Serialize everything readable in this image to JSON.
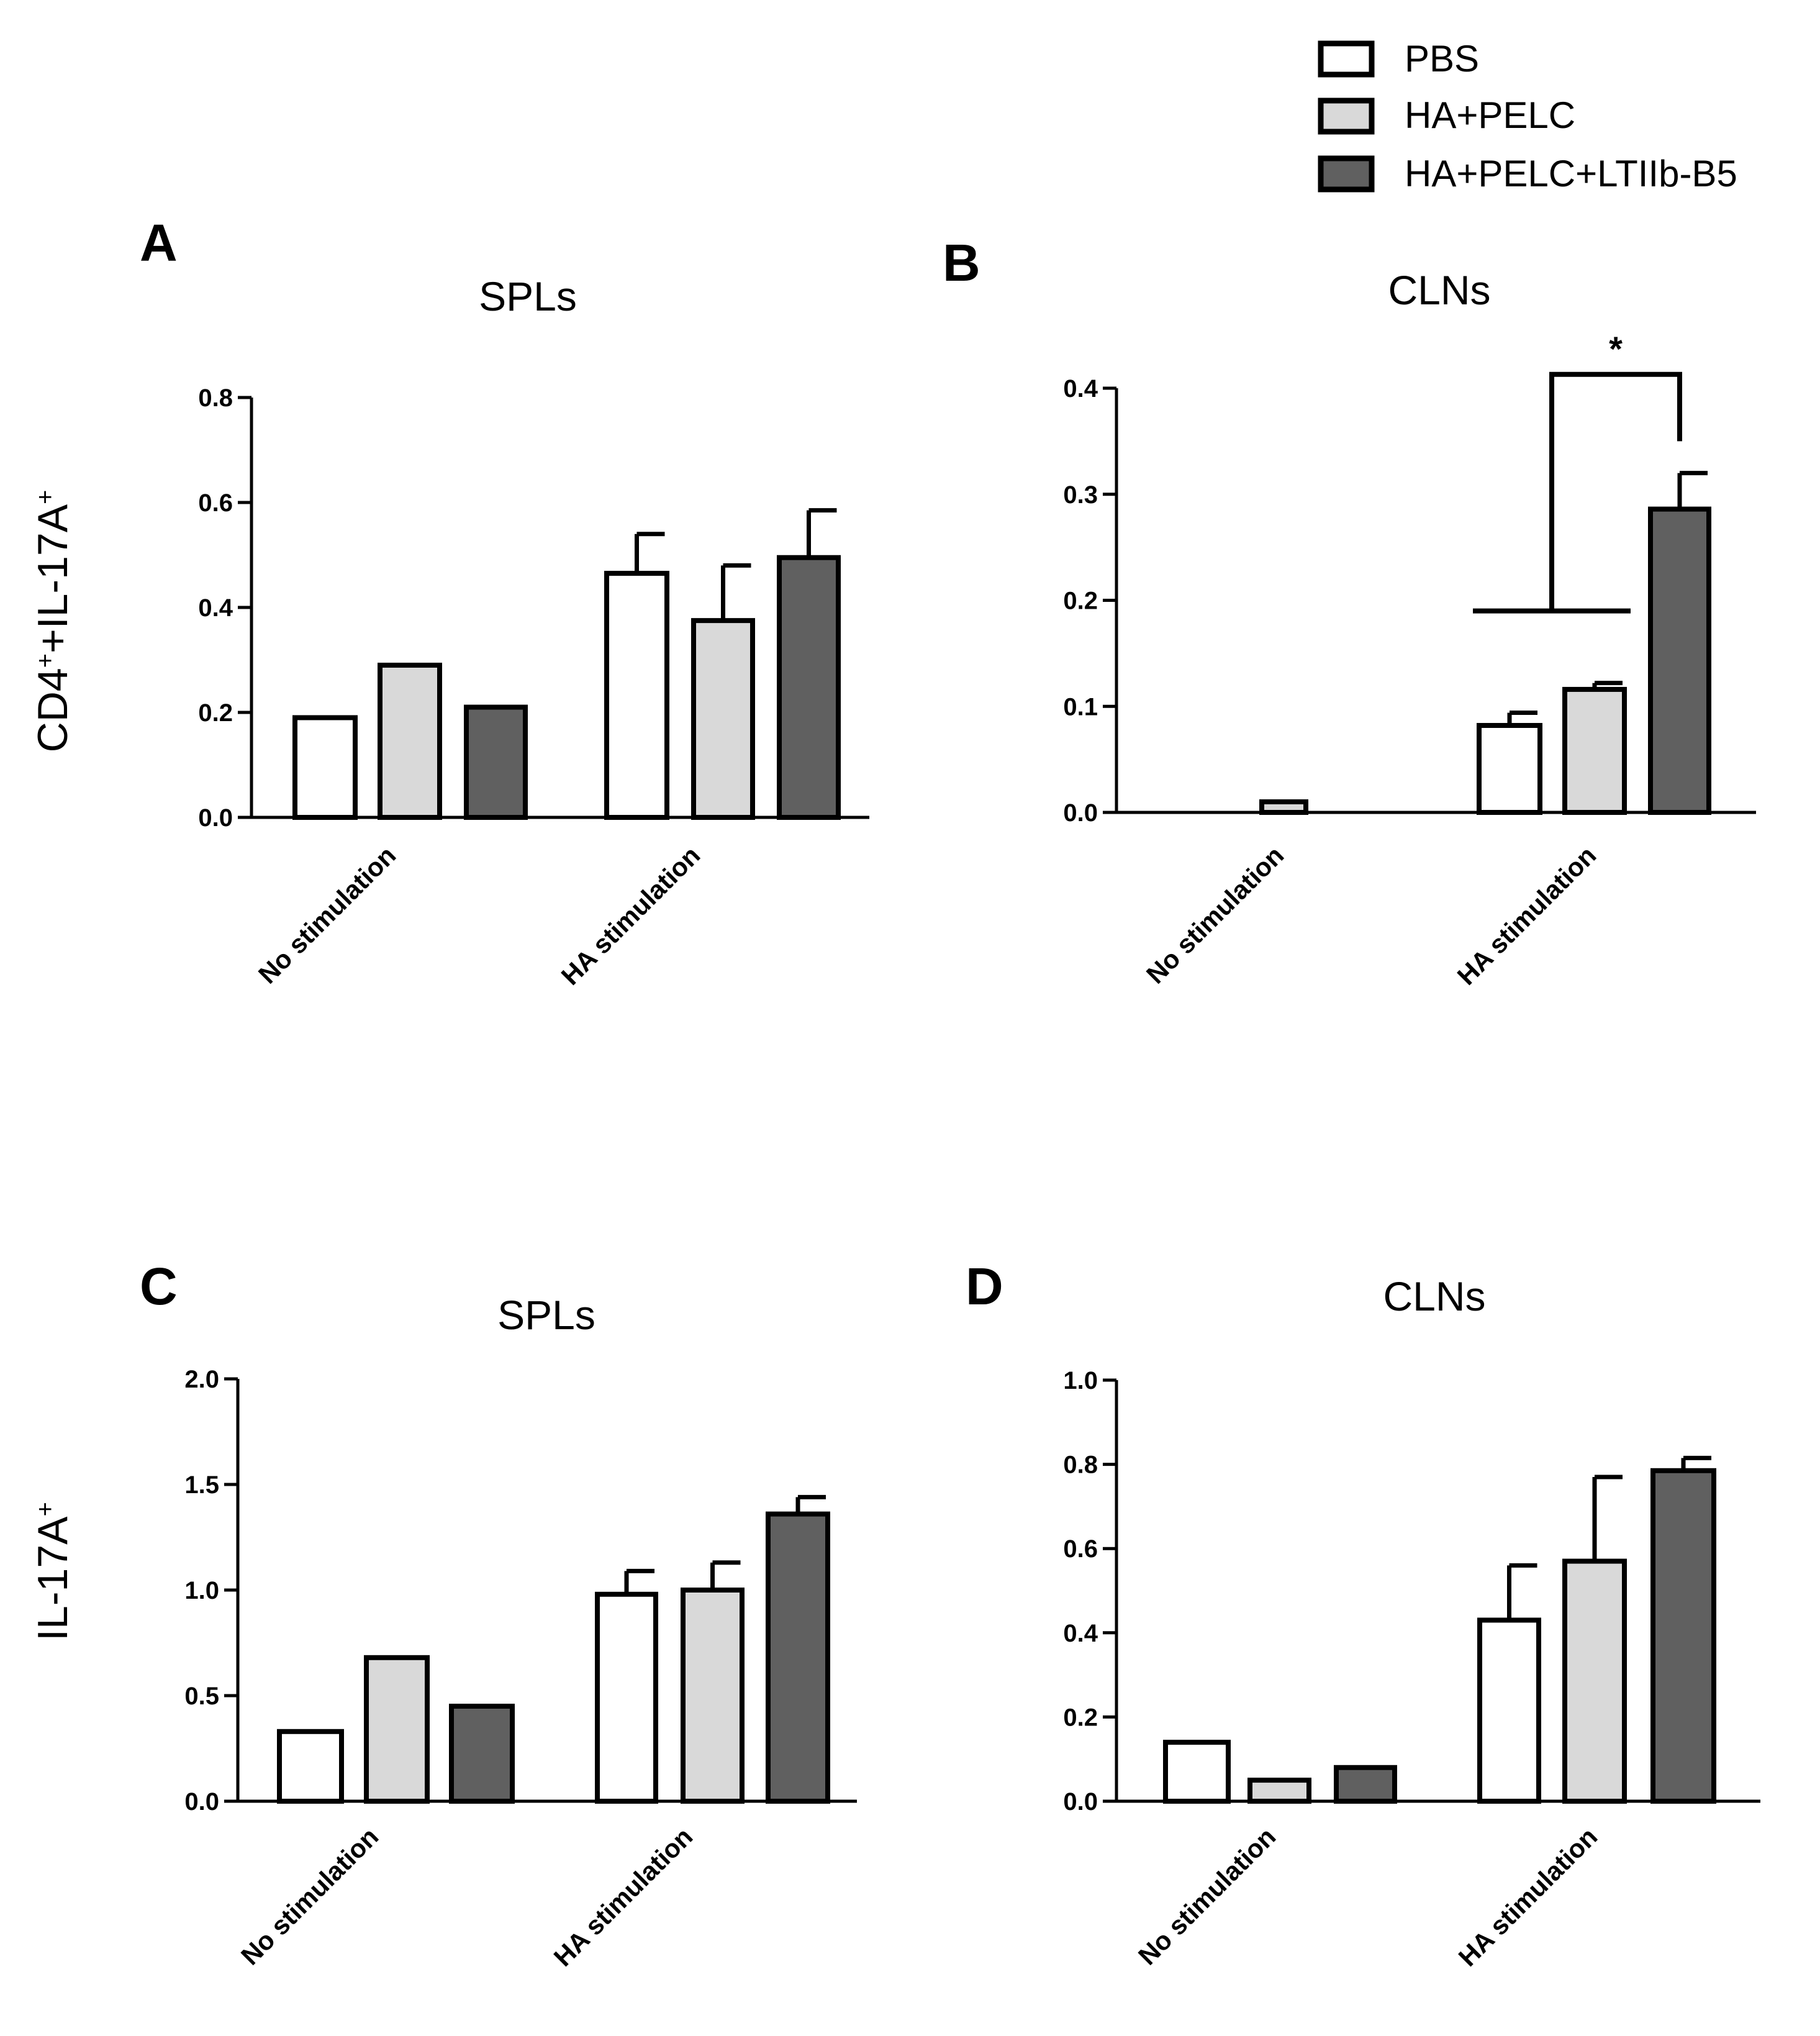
{
  "legend": {
    "entries": [
      {
        "label": "PBS",
        "color": "#ffffff"
      },
      {
        "label": "HA+PELC",
        "color": "#d9d9d9"
      },
      {
        "label": "HA+PELC+LTIIb-B5",
        "color": "#606060"
      }
    ]
  },
  "row_labels": {
    "top": {
      "base": "CD4",
      "sup1": "+",
      "mid": "+IL-17A",
      "sup2": "+"
    },
    "bottom": {
      "base": "IL-17A",
      "sup": "+"
    }
  },
  "chart_data": [
    {
      "type": "bar",
      "panel": "A",
      "title": "SPLs",
      "categories": [
        "No stimulation",
        "HA stimulation"
      ],
      "series": [
        {
          "name": "PBS",
          "values": [
            0.19,
            0.465
          ],
          "errors": [
            0,
            0.075
          ]
        },
        {
          "name": "HA+PELC",
          "values": [
            0.29,
            0.375
          ],
          "errors": [
            0,
            0.105
          ]
        },
        {
          "name": "HA+PELC+LTIIb-B5",
          "values": [
            0.21,
            0.495
          ],
          "errors": [
            0,
            0.09
          ]
        }
      ],
      "ylim": [
        0,
        0.8
      ],
      "yticks": [
        "0.0",
        "0.2",
        "0.4",
        "0.6",
        "0.8"
      ]
    },
    {
      "type": "bar",
      "panel": "B",
      "title": "CLNs",
      "categories": [
        "No stimulation",
        "HA stimulation"
      ],
      "series": [
        {
          "name": "PBS",
          "values": [
            0,
            0.082
          ],
          "errors": [
            0,
            0.012
          ]
        },
        {
          "name": "HA+PELC",
          "values": [
            0.01,
            0.116
          ],
          "errors": [
            0,
            0.006
          ]
        },
        {
          "name": "HA+PELC+LTIIb-B5",
          "values": [
            0,
            0.286
          ],
          "errors": [
            0,
            0.034
          ]
        }
      ],
      "ylim": [
        0,
        0.4
      ],
      "yticks": [
        "0.0",
        "0.1",
        "0.2",
        "0.3",
        "0.4"
      ],
      "significance": {
        "label": "*",
        "group_left_level": 0.19,
        "group_right_level": 0.35,
        "bar_level": 0.413
      }
    },
    {
      "type": "bar",
      "panel": "C",
      "title": "SPLs",
      "categories": [
        "No stimulation",
        "HA stimulation"
      ],
      "series": [
        {
          "name": "PBS",
          "values": [
            0.33,
            0.98
          ],
          "errors": [
            0,
            0.11
          ]
        },
        {
          "name": "HA+PELC",
          "values": [
            0.68,
            1.0
          ],
          "errors": [
            0,
            0.13
          ]
        },
        {
          "name": "HA+PELC+LTIIb-B5",
          "values": [
            0.45,
            1.36
          ],
          "errors": [
            0,
            0.08
          ]
        }
      ],
      "ylim": [
        0,
        2.0
      ],
      "yticks": [
        "0.0",
        "0.5",
        "1.0",
        "1.5",
        "2.0"
      ]
    },
    {
      "type": "bar",
      "panel": "D",
      "title": "CLNs",
      "categories": [
        "No stimulation",
        "HA stimulation"
      ],
      "series": [
        {
          "name": "PBS",
          "values": [
            0.14,
            0.43
          ],
          "errors": [
            0,
            0.13
          ]
        },
        {
          "name": "HA+PELC",
          "values": [
            0.05,
            0.57
          ],
          "errors": [
            0,
            0.2
          ]
        },
        {
          "name": "HA+PELC+LTIIb-B5",
          "values": [
            0.08,
            0.785
          ],
          "errors": [
            0,
            0.03
          ]
        }
      ],
      "ylim": [
        0,
        1.0
      ],
      "yticks": [
        "0.0",
        "0.2",
        "0.4",
        "0.6",
        "0.8",
        "1.0"
      ]
    }
  ]
}
